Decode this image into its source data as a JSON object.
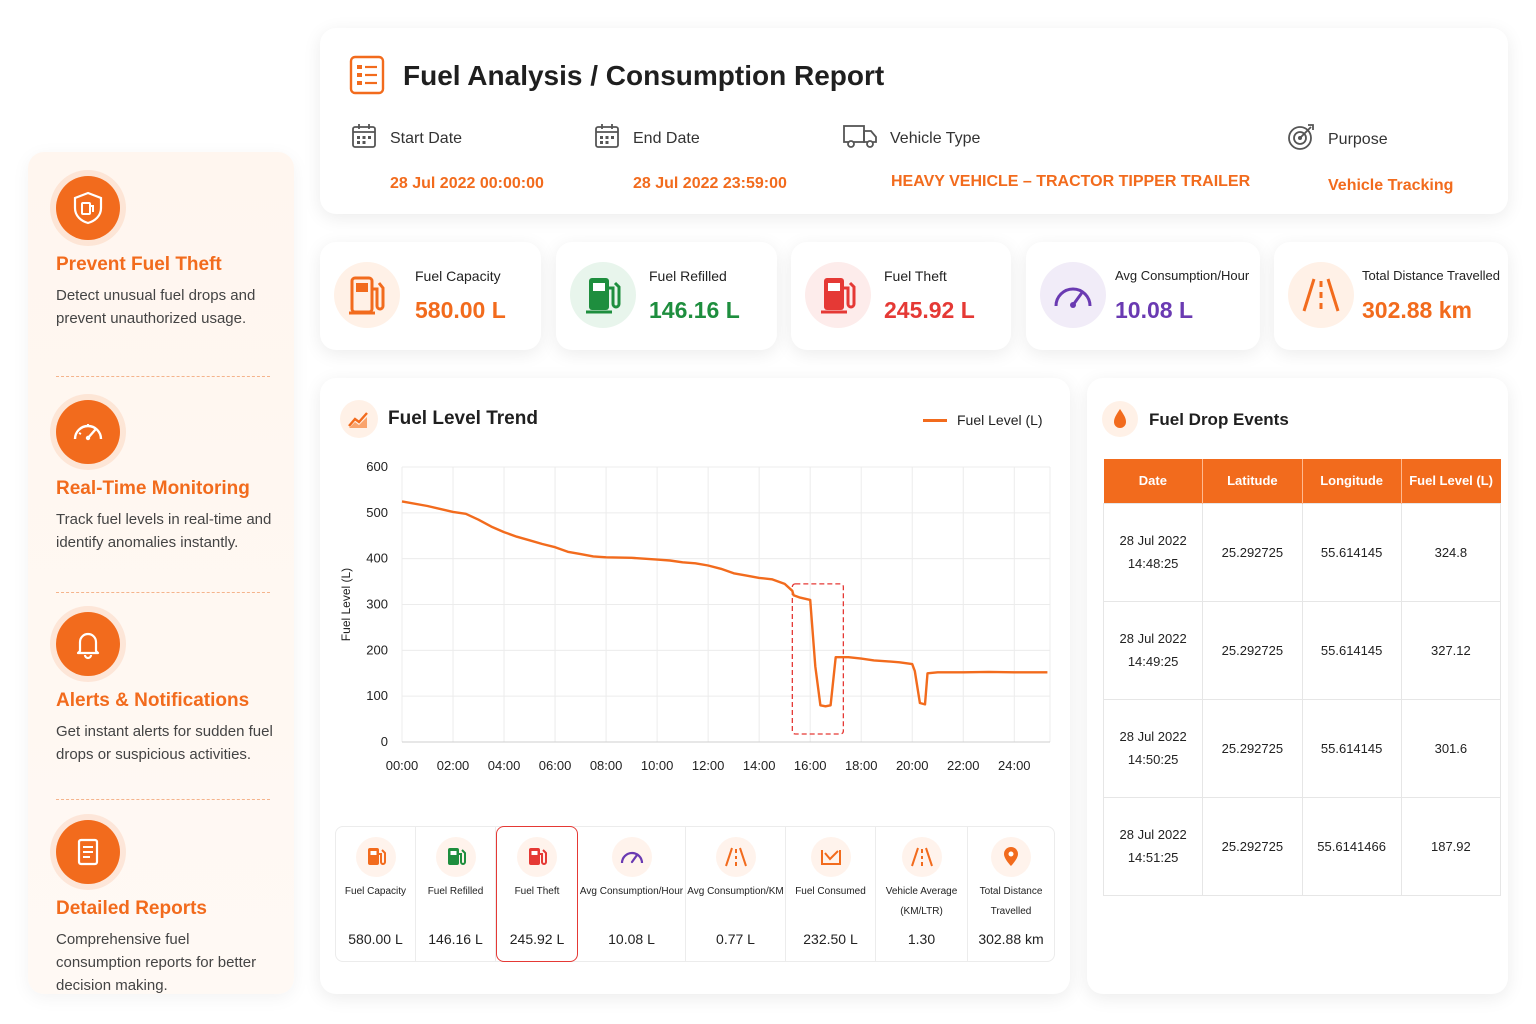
{
  "sidebar": {
    "features": [
      {
        "icon": "shield-fuel-icon",
        "title": "Prevent Fuel Theft",
        "desc": "Detect unusual fuel drops and prevent unauthorized usage."
      },
      {
        "icon": "speedometer-icon",
        "title": "Real-Time Monitoring",
        "desc": "Track fuel levels in real-time and identify anomalies instantly."
      },
      {
        "icon": "bell-icon",
        "title": "Alerts & Notifications",
        "desc": "Get instant alerts for sudden fuel drops or suspicious activities."
      },
      {
        "icon": "report-icon",
        "title": "Detailed Reports",
        "desc": "Comprehensive fuel consumption reports for better decision making."
      }
    ]
  },
  "header": {
    "title": "Fuel Analysis / Consumption Report",
    "start_label": "Start Date",
    "start_value": "28 Jul 2022 00:00:00",
    "end_label": "End Date",
    "end_value": "28 Jul 2022 23:59:00",
    "vehicle_label": "Vehicle Type",
    "vehicle_value": "HEAVY VEHICLE – TRACTOR TIPPER TRAILER",
    "purpose_label": "Purpose",
    "purpose_value": "Vehicle Tracking"
  },
  "kpis": {
    "capacity": {
      "label": "Fuel Capacity",
      "value": "580.00 L",
      "color": "#f26b1d"
    },
    "refilled": {
      "label": "Fuel Refilled",
      "value": "146.16 L",
      "color": "#1e8e3e"
    },
    "theft": {
      "label": "Fuel Theft",
      "value": "245.92 L",
      "color": "#e53935"
    },
    "avg": {
      "label": "Avg Consumption/Hour",
      "value": "10.08 L",
      "color": "#6a3ab2"
    },
    "distance": {
      "label": "Total Distance Travelled",
      "value": "302.88 km",
      "color": "#f26b1d"
    }
  },
  "chart": {
    "title": "Fuel Level Trend",
    "legend": "Fuel Level (L)"
  },
  "chart_data": {
    "type": "line",
    "ylabel": "Fuel Level (L)",
    "xlabel": "",
    "ylim": [
      0,
      600
    ],
    "yticks": [
      0,
      100,
      200,
      300,
      400,
      500,
      600
    ],
    "xticks": [
      "00:00",
      "02:00",
      "04:00",
      "06:00",
      "08:00",
      "10:00",
      "12:00",
      "14:00",
      "16:00",
      "18:00",
      "20:00",
      "22:00",
      "24:00"
    ],
    "grid": true,
    "legend_position": "top-right",
    "highlight_range_hours": [
      15.3,
      17.3
    ],
    "series": [
      {
        "name": "Fuel Level (L)",
        "color": "#f26b1d",
        "x_hours": [
          0,
          1,
          2,
          2.5,
          3,
          3.5,
          4,
          4.5,
          5,
          5.5,
          6,
          6.5,
          7,
          7.5,
          8,
          9,
          10,
          10.5,
          11,
          11.5,
          12,
          12.5,
          13,
          13.5,
          14,
          14.5,
          15,
          15.3,
          15.35,
          15.6,
          16,
          16.2,
          16.4,
          16.6,
          16.8,
          17,
          17.5,
          18,
          18.5,
          19,
          19.5,
          20,
          20.1,
          20.3,
          20.5,
          20.6,
          21,
          22,
          23,
          24,
          25.3
        ],
        "y": [
          525,
          515,
          502,
          498,
          485,
          470,
          458,
          448,
          440,
          432,
          425,
          415,
          410,
          405,
          403,
          402,
          398,
          396,
          392,
          390,
          385,
          378,
          368,
          363,
          358,
          355,
          345,
          330,
          320,
          315,
          310,
          165,
          80,
          78,
          80,
          185,
          185,
          182,
          178,
          176,
          174,
          170,
          155,
          85,
          82,
          150,
          152,
          152,
          153,
          152,
          152
        ]
      }
    ]
  },
  "stats": [
    {
      "icon": "fuel-pump-icon",
      "label": "Fuel Capacity",
      "value": "580.00 L",
      "color": "#f26b1d"
    },
    {
      "icon": "fuel-pump-icon",
      "label": "Fuel Refilled",
      "value": "146.16 L",
      "color": "#1e8e3e"
    },
    {
      "icon": "fuel-pump-icon",
      "label": "Fuel Theft",
      "value": "245.92 L",
      "color": "#e53935"
    },
    {
      "icon": "speedometer-icon",
      "label": "Avg Consumption/Hour",
      "value": "10.08 L",
      "color": "#6a3ab2"
    },
    {
      "icon": "road-icon",
      "label": "Avg Consumption/KM",
      "value": "0.77 L",
      "color": "#f26b1d"
    },
    {
      "icon": "chart-down-icon",
      "label": "Fuel Consumed",
      "value": "232.50 L",
      "color": "#f26b1d"
    },
    {
      "icon": "road-icon",
      "label": "Vehicle Average\n(KM/LTR)",
      "value": "1.30",
      "color": "#f26b1d"
    },
    {
      "icon": "location-pin-icon",
      "label": "Total Distance\nTravelled",
      "value": "302.88 km",
      "color": "#f26b1d"
    }
  ],
  "events": {
    "title": "Fuel Drop Events",
    "columns": [
      "Date",
      "Latitude",
      "Longitude",
      "Fuel Level (L)"
    ],
    "rows": [
      {
        "date": "28 Jul 2022",
        "time": "14:48:25",
        "lat": "25.292725",
        "lng": "55.614145",
        "level": "324.8"
      },
      {
        "date": "28 Jul 2022",
        "time": "14:49:25",
        "lat": "25.292725",
        "lng": "55.614145",
        "level": "327.12"
      },
      {
        "date": "28 Jul 2022",
        "time": "14:50:25",
        "lat": "25.292725",
        "lng": "55.614145",
        "level": "301.6"
      },
      {
        "date": "28 Jul 2022",
        "time": "14:51:25",
        "lat": "25.292725",
        "lng": "55.6141466",
        "level": "187.92"
      }
    ]
  },
  "colors": {
    "accent": "#f26b1d",
    "green": "#1e8e3e",
    "red": "#e53935",
    "purple": "#6a3ab2"
  }
}
